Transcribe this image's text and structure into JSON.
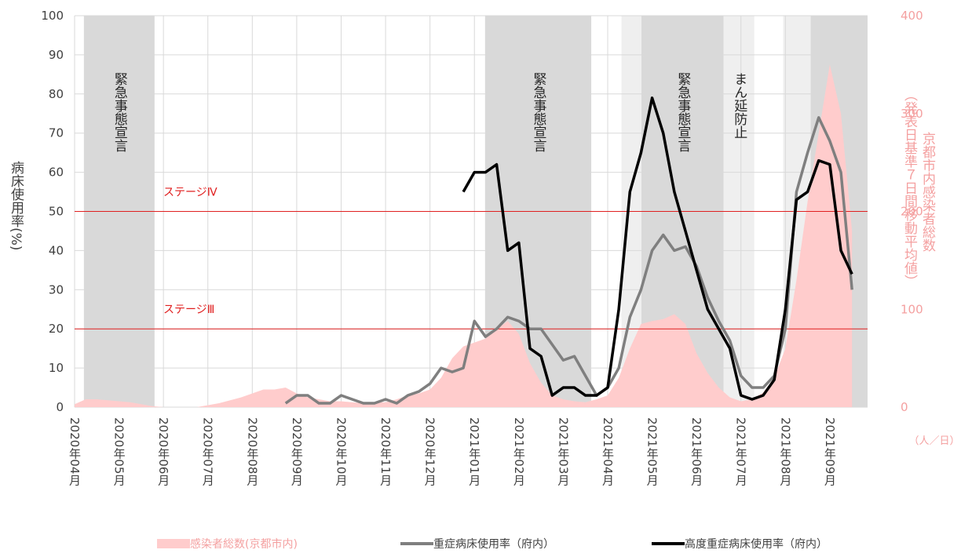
{
  "chart_data": {
    "type": "line",
    "y_label": "病床使用率(%)",
    "y2_label_lines": [
      "京都市内感染者総数",
      "（発表日基準７日間移動平均値）"
    ],
    "y2_unit": "（人／日）",
    "xlim": [
      0,
      17.85
    ],
    "ylim": [
      0,
      100
    ],
    "y2lim": [
      0,
      400
    ],
    "yticks": [
      0,
      10,
      20,
      30,
      40,
      50,
      60,
      70,
      80,
      90,
      100
    ],
    "y2ticks": [
      0,
      100,
      200,
      300,
      400
    ],
    "xticks": [
      {
        "value": 0,
        "label": "2020年04月"
      },
      {
        "value": 1,
        "label": "2020年05月"
      },
      {
        "value": 2,
        "label": "2020年06月"
      },
      {
        "value": 3,
        "label": "2020年07月"
      },
      {
        "value": 4,
        "label": "2020年08月"
      },
      {
        "value": 5,
        "label": "2020年09月"
      },
      {
        "value": 6,
        "label": "2020年10月"
      },
      {
        "value": 7,
        "label": "2020年11月"
      },
      {
        "value": 8,
        "label": "2020年12月"
      },
      {
        "value": 9,
        "label": "2021年01月"
      },
      {
        "value": 10,
        "label": "2021年02月"
      },
      {
        "value": 11,
        "label": "2021年03月"
      },
      {
        "value": 12,
        "label": "2021年04月"
      },
      {
        "value": 13,
        "label": "2021年05月"
      },
      {
        "value": 14,
        "label": "2021年06月"
      },
      {
        "value": 15,
        "label": "2021年07月"
      },
      {
        "value": 16,
        "label": "2021年08月"
      },
      {
        "value": 17,
        "label": "2021年09月"
      }
    ],
    "grid": true,
    "periods": [
      {
        "start": 0.21,
        "end": 1.8,
        "color": "#d9d9d9",
        "label": "緊急事態宣言"
      },
      {
        "start": 9.24,
        "end": 11.63,
        "color": "#d9d9d9",
        "label": "緊急事態宣言"
      },
      {
        "start": 12.31,
        "end": 12.76,
        "color": "#efefef"
      },
      {
        "start": 12.76,
        "end": 14.61,
        "color": "#d9d9d9",
        "label": "緊急事態宣言"
      },
      {
        "start": 14.61,
        "end": 15.3,
        "color": "#efefef",
        "label": "まん延防止"
      },
      {
        "start": 15.95,
        "end": 16.57,
        "color": "#efefef"
      },
      {
        "start": 16.57,
        "end": 17.85,
        "color": "#d9d9d9"
      }
    ],
    "reference_lines": [
      {
        "value": 50,
        "label": "ステージⅣ",
        "color": "#e02020"
      },
      {
        "value": 20,
        "label": "ステージⅢ",
        "color": "#e02020"
      }
    ],
    "x": [
      0,
      0.25,
      0.5,
      0.75,
      1,
      1.25,
      1.5,
      1.75,
      2,
      2.25,
      2.5,
      2.75,
      3,
      3.25,
      3.5,
      3.75,
      4,
      4.25,
      4.5,
      4.75,
      5,
      5.25,
      5.5,
      5.75,
      6,
      6.25,
      6.5,
      6.75,
      7,
      7.25,
      7.5,
      7.75,
      8,
      8.25,
      8.5,
      8.75,
      9,
      9.25,
      9.5,
      9.75,
      10,
      10.25,
      10.5,
      10.75,
      11,
      11.25,
      11.5,
      11.75,
      12,
      12.25,
      12.5,
      12.75,
      13,
      13.25,
      13.5,
      13.75,
      14,
      14.25,
      14.5,
      14.75,
      15,
      15.25,
      15.5,
      15.75,
      16,
      16.25,
      16.5,
      16.75,
      17,
      17.25,
      17.5
    ],
    "series": [
      {
        "name": "感染者総数(京都市内)",
        "kind": "area",
        "axis": "y2",
        "color": "#ffcccc",
        "values": [
          3,
          8,
          8,
          7,
          6,
          5,
          3,
          1,
          0,
          0,
          0,
          0,
          2,
          4,
          7,
          10,
          14,
          18,
          18,
          20,
          14,
          10,
          8,
          6,
          6,
          5,
          4,
          5,
          5,
          8,
          12,
          14,
          18,
          30,
          50,
          62,
          66,
          70,
          80,
          88,
          75,
          45,
          25,
          12,
          8,
          6,
          5,
          8,
          12,
          30,
          60,
          85,
          88,
          90,
          95,
          85,
          55,
          35,
          20,
          10,
          6,
          8,
          15,
          30,
          60,
          130,
          210,
          280,
          350,
          300,
          180
        ]
      },
      {
        "name": "重症病床使用率（府内）",
        "kind": "line",
        "color": "#7f7f7f",
        "values": [
          null,
          null,
          null,
          null,
          null,
          null,
          null,
          null,
          null,
          null,
          null,
          null,
          null,
          null,
          null,
          null,
          null,
          null,
          null,
          1,
          3,
          3,
          1,
          1,
          3,
          2,
          1,
          1,
          2,
          1,
          3,
          4,
          6,
          10,
          9,
          10,
          22,
          18,
          20,
          23,
          22,
          20,
          20,
          16,
          12,
          13,
          8,
          3,
          5,
          10,
          23,
          30,
          40,
          44,
          40,
          41,
          36,
          28,
          22,
          17,
          8,
          5,
          5,
          8,
          20,
          55,
          65,
          74,
          68,
          60,
          30
        ]
      },
      {
        "name": "高度重症病床使用率（府内）",
        "kind": "line",
        "color": "#000000",
        "values": [
          null,
          null,
          null,
          null,
          null,
          null,
          null,
          null,
          null,
          null,
          null,
          null,
          null,
          null,
          null,
          null,
          null,
          null,
          null,
          null,
          null,
          null,
          null,
          null,
          null,
          null,
          null,
          null,
          null,
          null,
          null,
          null,
          null,
          null,
          null,
          55,
          60,
          60,
          62,
          40,
          42,
          15,
          13,
          3,
          5,
          5,
          3,
          3,
          5,
          25,
          55,
          65,
          79,
          70,
          55,
          45,
          35,
          25,
          20,
          15,
          3,
          2,
          3,
          7,
          25,
          53,
          55,
          63,
          62,
          40,
          34
        ]
      }
    ]
  }
}
